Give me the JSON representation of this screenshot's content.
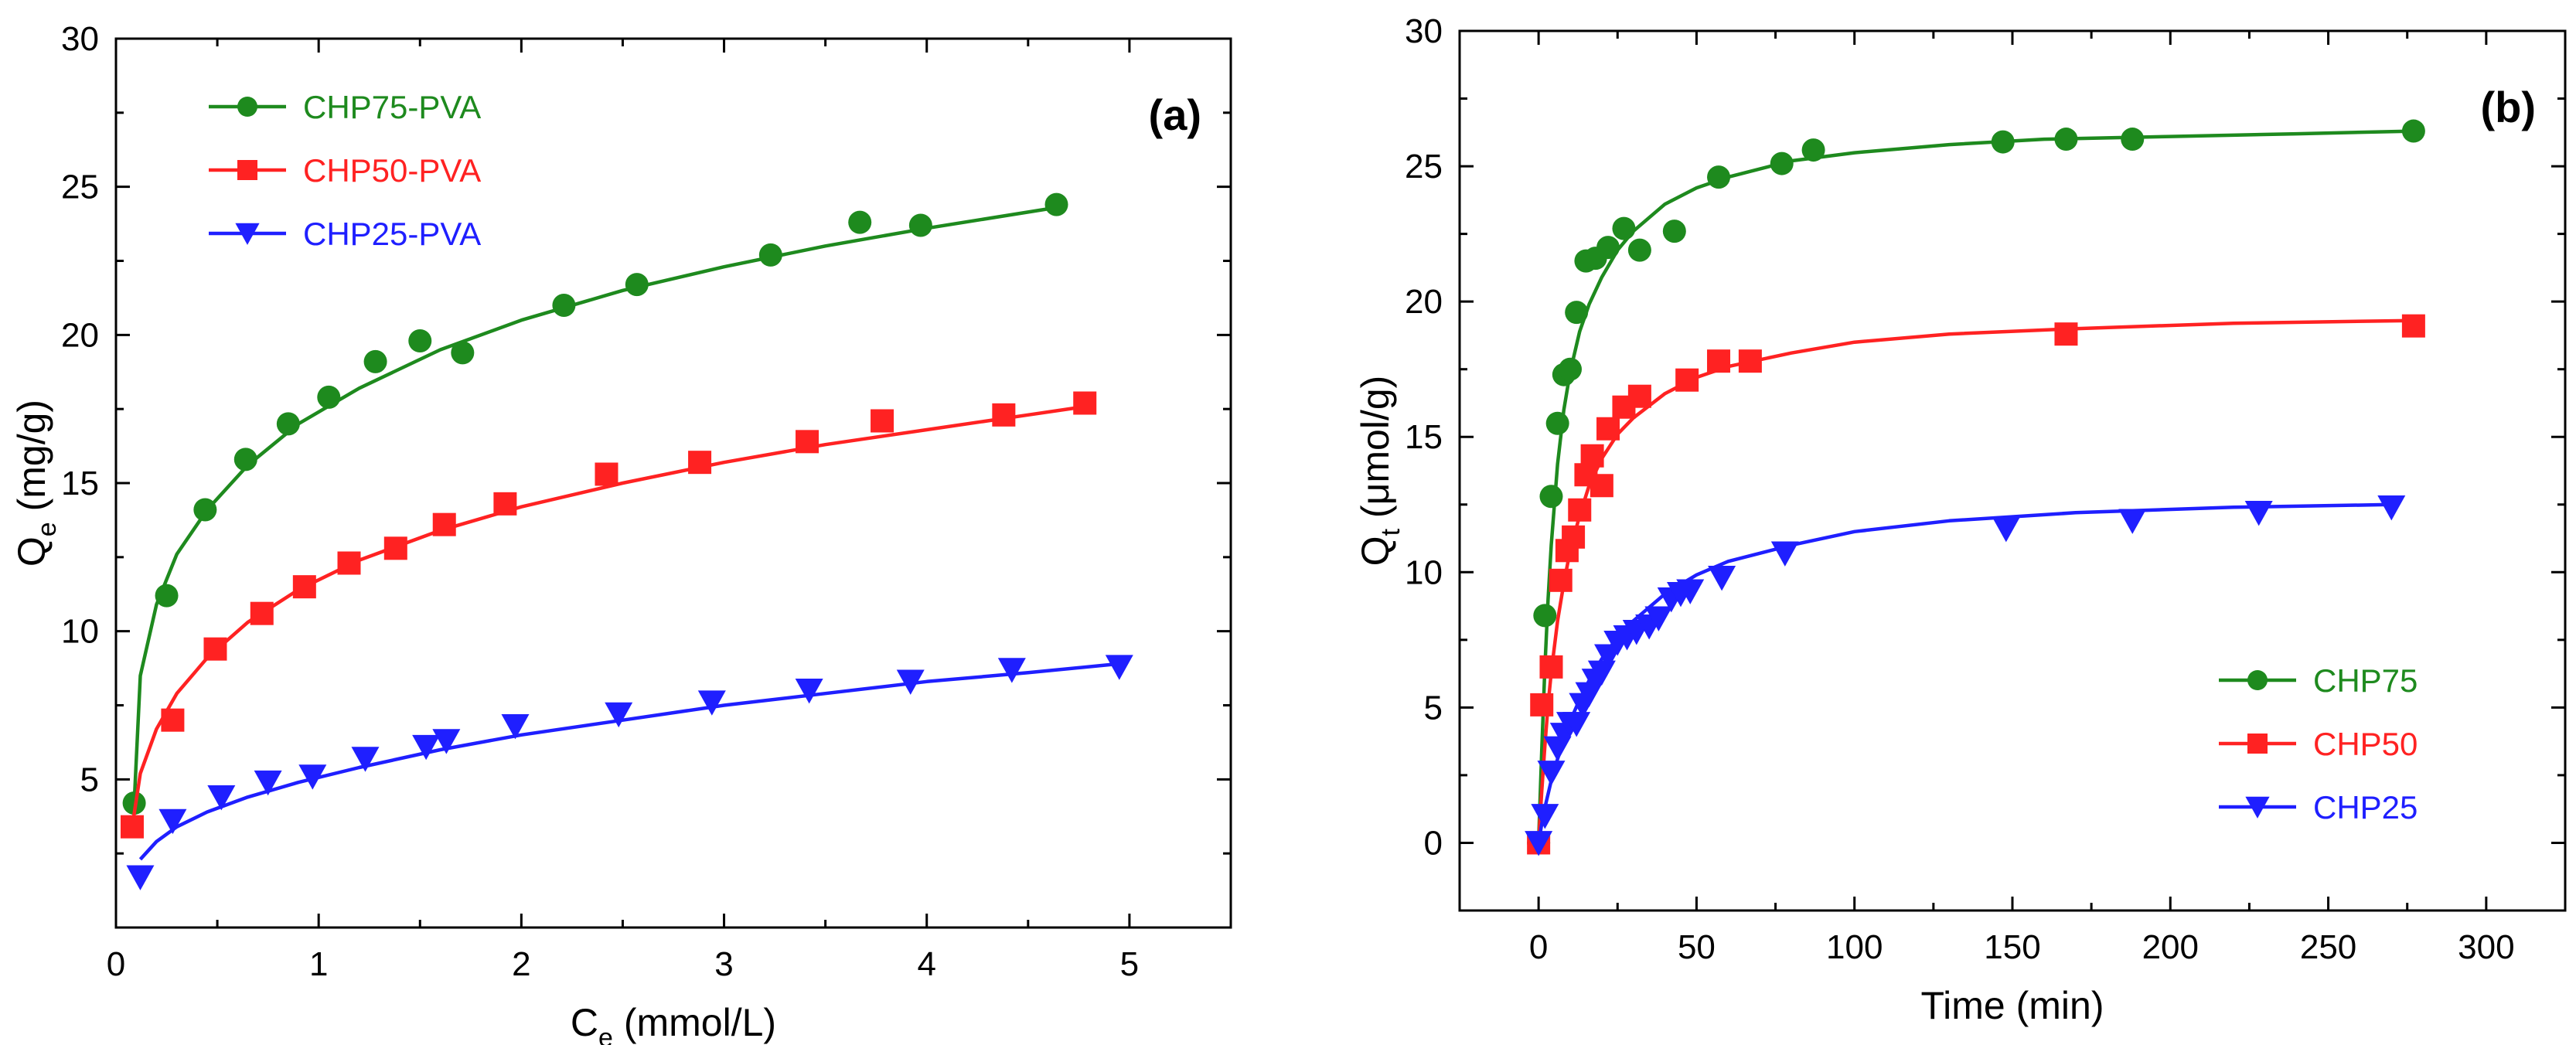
{
  "chart_data": [
    {
      "type": "scatter",
      "panel_label": "(a)",
      "xlabel": "C",
      "xlabel_sub": "e",
      "xlabel_unit": " (mmol/L)",
      "ylabel": "Q",
      "ylabel_sub": "e",
      "ylabel_unit": " (mg/g)",
      "xlim": [
        0,
        5.5
      ],
      "ylim": [
        0,
        30
      ],
      "xticks": [
        0,
        1,
        2,
        3,
        4,
        5
      ],
      "yticks": [
        5,
        10,
        15,
        20,
        25,
        30
      ],
      "legend_position": "top-left",
      "grid": false,
      "series": [
        {
          "name": "CHP75-PVA",
          "color": "#1e8a1e",
          "marker": "circle",
          "points": [
            [
              0.09,
              4.2
            ],
            [
              0.25,
              11.2
            ],
            [
              0.44,
              14.1
            ],
            [
              0.64,
              15.8
            ],
            [
              0.85,
              17.0
            ],
            [
              1.05,
              17.9
            ],
            [
              1.28,
              19.1
            ],
            [
              1.5,
              19.8
            ],
            [
              1.71,
              19.4
            ],
            [
              2.21,
              21.0
            ],
            [
              2.57,
              21.7
            ],
            [
              3.23,
              22.7
            ],
            [
              3.67,
              23.8
            ],
            [
              3.97,
              23.7
            ],
            [
              4.64,
              24.4
            ]
          ],
          "fit": [
            [
              0.09,
              4.2
            ],
            [
              0.12,
              8.5
            ],
            [
              0.2,
              10.9
            ],
            [
              0.3,
              12.6
            ],
            [
              0.45,
              14.1
            ],
            [
              0.65,
              15.6
            ],
            [
              0.9,
              17.0
            ],
            [
              1.2,
              18.2
            ],
            [
              1.6,
              19.5
            ],
            [
              2.0,
              20.5
            ],
            [
              2.5,
              21.5
            ],
            [
              3.0,
              22.3
            ],
            [
              3.5,
              23.0
            ],
            [
              4.0,
              23.6
            ],
            [
              4.64,
              24.3
            ]
          ]
        },
        {
          "name": "CHP50-PVA",
          "color": "#ff2222",
          "marker": "square",
          "points": [
            [
              0.08,
              3.4
            ],
            [
              0.28,
              7.0
            ],
            [
              0.49,
              9.4
            ],
            [
              0.72,
              10.6
            ],
            [
              0.93,
              11.5
            ],
            [
              1.15,
              12.3
            ],
            [
              1.38,
              12.8
            ],
            [
              1.62,
              13.6
            ],
            [
              1.92,
              14.3
            ],
            [
              2.42,
              15.3
            ],
            [
              2.88,
              15.7
            ],
            [
              3.41,
              16.4
            ],
            [
              3.78,
              17.1
            ],
            [
              4.38,
              17.3
            ],
            [
              4.78,
              17.7
            ]
          ],
          "fit": [
            [
              0.08,
              3.4
            ],
            [
              0.12,
              5.2
            ],
            [
              0.2,
              6.7
            ],
            [
              0.3,
              7.9
            ],
            [
              0.45,
              9.1
            ],
            [
              0.65,
              10.3
            ],
            [
              0.9,
              11.4
            ],
            [
              1.2,
              12.4
            ],
            [
              1.6,
              13.4
            ],
            [
              2.0,
              14.2
            ],
            [
              2.5,
              15.0
            ],
            [
              3.0,
              15.7
            ],
            [
              3.5,
              16.3
            ],
            [
              4.0,
              16.8
            ],
            [
              4.5,
              17.3
            ],
            [
              4.8,
              17.6
            ]
          ]
        },
        {
          "name": "CHP25-PVA",
          "color": "#1f1fff",
          "marker": "triangle-down",
          "points": [
            [
              0.12,
              1.7
            ],
            [
              0.28,
              3.6
            ],
            [
              0.52,
              4.4
            ],
            [
              0.75,
              4.9
            ],
            [
              0.97,
              5.1
            ],
            [
              1.23,
              5.7
            ],
            [
              1.53,
              6.1
            ],
            [
              1.63,
              6.3
            ],
            [
              1.97,
              6.8
            ],
            [
              2.48,
              7.2
            ],
            [
              2.94,
              7.6
            ],
            [
              3.42,
              8.0
            ],
            [
              3.92,
              8.3
            ],
            [
              4.42,
              8.7
            ],
            [
              4.95,
              8.8
            ]
          ],
          "fit": [
            [
              0.12,
              2.3
            ],
            [
              0.2,
              2.9
            ],
            [
              0.3,
              3.4
            ],
            [
              0.45,
              3.9
            ],
            [
              0.65,
              4.4
            ],
            [
              0.9,
              4.9
            ],
            [
              1.2,
              5.4
            ],
            [
              1.6,
              6.0
            ],
            [
              2.0,
              6.5
            ],
            [
              2.5,
              7.0
            ],
            [
              3.0,
              7.5
            ],
            [
              3.5,
              7.9
            ],
            [
              4.0,
              8.3
            ],
            [
              4.5,
              8.6
            ],
            [
              4.95,
              8.9
            ]
          ]
        }
      ]
    },
    {
      "type": "scatter",
      "panel_label": "(b)",
      "xlabel": "Time (min)",
      "xlabel_sub": "",
      "xlabel_unit": "",
      "ylabel": "Q",
      "ylabel_sub": "t",
      "ylabel_unit": " (μmol/g)",
      "xlim": [
        -25,
        325
      ],
      "ylim": [
        -2.5,
        30
      ],
      "xticks": [
        0,
        50,
        100,
        150,
        200,
        250,
        300
      ],
      "yticks": [
        0,
        5,
        10,
        15,
        20,
        25,
        30
      ],
      "legend_position": "bottom-right",
      "grid": false,
      "series": [
        {
          "name": "CHP75",
          "color": "#1e8a1e",
          "marker": "circle",
          "points": [
            [
              0,
              0
            ],
            [
              2,
              8.4
            ],
            [
              4,
              12.8
            ],
            [
              6,
              15.5
            ],
            [
              8,
              17.3
            ],
            [
              10,
              17.5
            ],
            [
              12,
              19.6
            ],
            [
              15,
              21.5
            ],
            [
              18,
              21.6
            ],
            [
              22,
              22.0
            ],
            [
              27,
              22.7
            ],
            [
              32,
              21.9
            ],
            [
              43,
              22.6
            ],
            [
              57,
              24.6
            ],
            [
              77,
              25.1
            ],
            [
              87,
              25.6
            ],
            [
              147,
              25.9
            ],
            [
              167,
              26.0
            ],
            [
              188,
              26.0
            ],
            [
              277,
              26.3
            ]
          ],
          "fit": [
            [
              0,
              0
            ],
            [
              1,
              3.4
            ],
            [
              2,
              6.5
            ],
            [
              3,
              9.0
            ],
            [
              4,
              11.0
            ],
            [
              6,
              14.0
            ],
            [
              8,
              16.0
            ],
            [
              10,
              17.4
            ],
            [
              13,
              18.9
            ],
            [
              16,
              19.9
            ],
            [
              20,
              20.9
            ],
            [
              25,
              21.9
            ],
            [
              30,
              22.6
            ],
            [
              40,
              23.6
            ],
            [
              50,
              24.2
            ],
            [
              60,
              24.6
            ],
            [
              80,
              25.2
            ],
            [
              100,
              25.5
            ],
            [
              130,
              25.8
            ],
            [
              160,
              26.0
            ],
            [
              200,
              26.1
            ],
            [
              240,
              26.2
            ],
            [
              277,
              26.3
            ]
          ]
        },
        {
          "name": "CHP50",
          "color": "#ff2222",
          "marker": "square",
          "points": [
            [
              0,
              0
            ],
            [
              1,
              5.1
            ],
            [
              4,
              6.5
            ],
            [
              7,
              9.7
            ],
            [
              9,
              10.8
            ],
            [
              11,
              11.3
            ],
            [
              13,
              12.3
            ],
            [
              15,
              13.6
            ],
            [
              17,
              14.3
            ],
            [
              20,
              13.2
            ],
            [
              22,
              15.3
            ],
            [
              27,
              16.1
            ],
            [
              32,
              16.5
            ],
            [
              47,
              17.1
            ],
            [
              57,
              17.8
            ],
            [
              67,
              17.8
            ],
            [
              167,
              18.8
            ],
            [
              277,
              19.1
            ]
          ],
          "fit": [
            [
              0,
              0
            ],
            [
              1,
              1.9
            ],
            [
              2,
              3.6
            ],
            [
              3,
              5.1
            ],
            [
              4,
              6.3
            ],
            [
              6,
              8.2
            ],
            [
              8,
              9.6
            ],
            [
              10,
              10.8
            ],
            [
              13,
              12.1
            ],
            [
              16,
              13.2
            ],
            [
              20,
              14.2
            ],
            [
              25,
              15.1
            ],
            [
              30,
              15.7
            ],
            [
              40,
              16.6
            ],
            [
              50,
              17.2
            ],
            [
              60,
              17.6
            ],
            [
              80,
              18.1
            ],
            [
              100,
              18.5
            ],
            [
              130,
              18.8
            ],
            [
              170,
              19.0
            ],
            [
              220,
              19.2
            ],
            [
              277,
              19.3
            ]
          ]
        },
        {
          "name": "CHP25",
          "color": "#1f1fff",
          "marker": "triangle-down",
          "points": [
            [
              0,
              0
            ],
            [
              2,
              1.0
            ],
            [
              4,
              2.6
            ],
            [
              6,
              3.5
            ],
            [
              8,
              4.0
            ],
            [
              10,
              4.4
            ],
            [
              12,
              4.4
            ],
            [
              14,
              5.1
            ],
            [
              16,
              5.5
            ],
            [
              18,
              6.0
            ],
            [
              20,
              6.3
            ],
            [
              22,
              6.9
            ],
            [
              25,
              7.4
            ],
            [
              28,
              7.6
            ],
            [
              31,
              7.8
            ],
            [
              35,
              8.0
            ],
            [
              38,
              8.3
            ],
            [
              42,
              9.0
            ],
            [
              45,
              9.2
            ],
            [
              48,
              9.3
            ],
            [
              58,
              9.8
            ],
            [
              78,
              10.7
            ],
            [
              148,
              11.6
            ],
            [
              188,
              11.9
            ],
            [
              228,
              12.2
            ],
            [
              270,
              12.4
            ]
          ],
          "fit": [
            [
              0,
              0
            ],
            [
              1,
              0.7
            ],
            [
              2,
              1.3
            ],
            [
              3,
              1.8
            ],
            [
              4,
              2.3
            ],
            [
              6,
              3.1
            ],
            [
              8,
              3.8
            ],
            [
              10,
              4.5
            ],
            [
              13,
              5.3
            ],
            [
              16,
              6.0
            ],
            [
              20,
              6.8
            ],
            [
              25,
              7.6
            ],
            [
              30,
              8.2
            ],
            [
              40,
              9.2
            ],
            [
              50,
              9.9
            ],
            [
              60,
              10.4
            ],
            [
              80,
              11.0
            ],
            [
              100,
              11.5
            ],
            [
              130,
              11.9
            ],
            [
              170,
              12.2
            ],
            [
              220,
              12.4
            ],
            [
              270,
              12.5
            ]
          ]
        }
      ]
    }
  ]
}
